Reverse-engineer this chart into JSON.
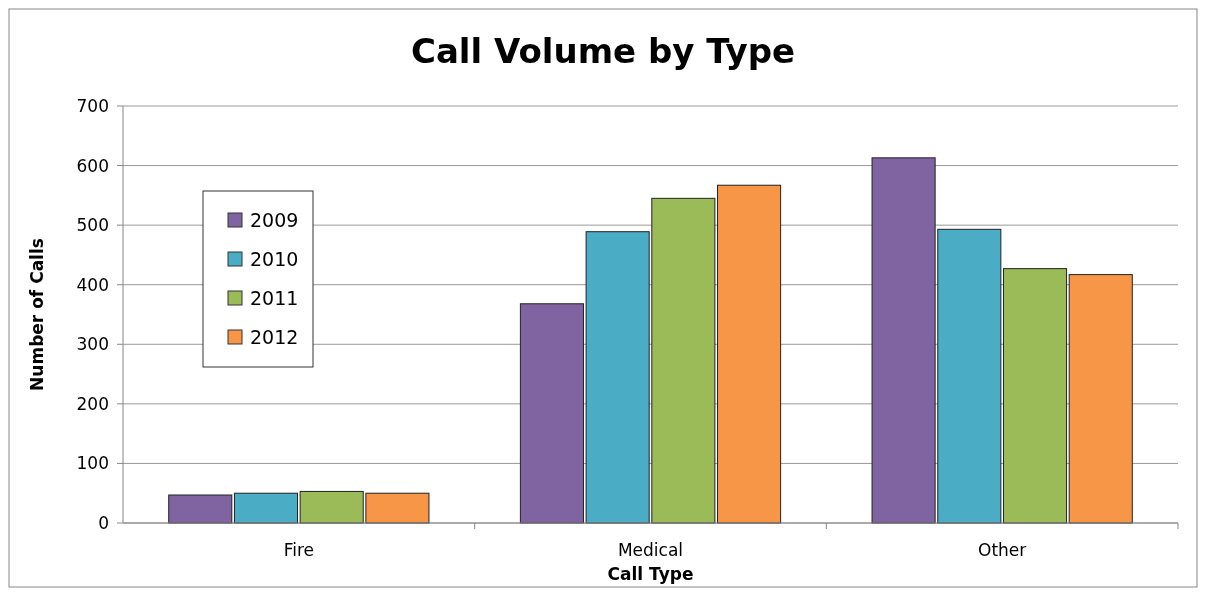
{
  "chart_data": {
    "type": "bar",
    "title": "Call Volume by Type",
    "xlabel": "Call Type",
    "ylabel": "Number of Calls",
    "categories": [
      "Fire",
      "Medical",
      "Other"
    ],
    "series": [
      {
        "name": "2009",
        "color": "#8064a2",
        "values": [
          47,
          368,
          613
        ]
      },
      {
        "name": "2010",
        "color": "#4bacc6",
        "values": [
          50,
          489,
          493
        ]
      },
      {
        "name": "2011",
        "color": "#9bbb59",
        "values": [
          53,
          545,
          427
        ]
      },
      {
        "name": "2012",
        "color": "#f79646",
        "values": [
          50,
          567,
          417
        ]
      }
    ],
    "ylim": [
      0,
      700
    ],
    "yticks": [
      0,
      100,
      200,
      300,
      400,
      500,
      600,
      700
    ],
    "grid": "y",
    "legend": "top left"
  }
}
